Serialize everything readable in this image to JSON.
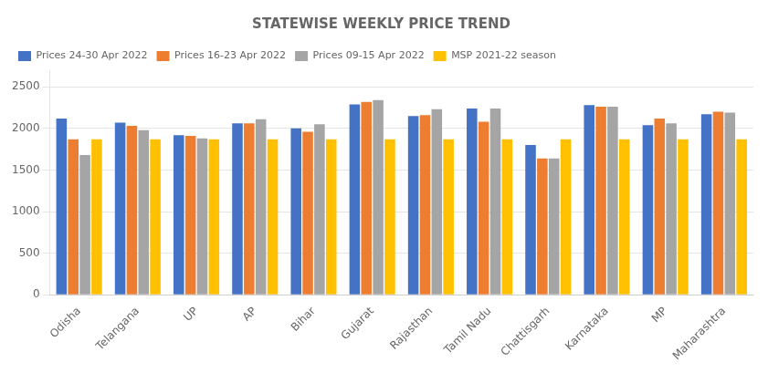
{
  "chart_data": {
    "type": "bar",
    "title": "STATEWISE WEEKLY PRICE TREND",
    "categories": [
      "Odisha",
      "Telangana",
      "UP",
      "AP",
      "Bihar",
      "Gujarat",
      "Rajasthan",
      "Tamil Nadu",
      "Chattisgarh",
      "Karnataka",
      "MP",
      "Maharashtra"
    ],
    "series": [
      {
        "name": "Prices 24-30 Apr 2022",
        "color": "#4472C4",
        "values": [
          2120,
          2070,
          1920,
          2060,
          2000,
          2290,
          2150,
          2240,
          1800,
          2280,
          2040,
          2170
        ]
      },
      {
        "name": "Prices 16-23 Apr 2022",
        "color": "#ED7D31",
        "values": [
          1870,
          2030,
          1910,
          2060,
          1960,
          2320,
          2160,
          2080,
          1640,
          2260,
          2120,
          2200
        ]
      },
      {
        "name": "Prices 09-15 Apr 2022",
        "color": "#A5A5A5",
        "values": [
          1680,
          1980,
          1880,
          2110,
          2050,
          2340,
          2230,
          2240,
          1640,
          2260,
          2060,
          2190
        ]
      },
      {
        "name": "MSP 2021-22 season",
        "color": "#FFC000",
        "values": [
          1870,
          1870,
          1870,
          1870,
          1870,
          1870,
          1870,
          1870,
          1870,
          1870,
          1870,
          1870
        ]
      }
    ],
    "ylim": [
      0,
      2700
    ],
    "yticks": [
      0,
      500,
      1000,
      1500,
      2000,
      2500
    ],
    "grid": true,
    "legend": "upper left"
  }
}
